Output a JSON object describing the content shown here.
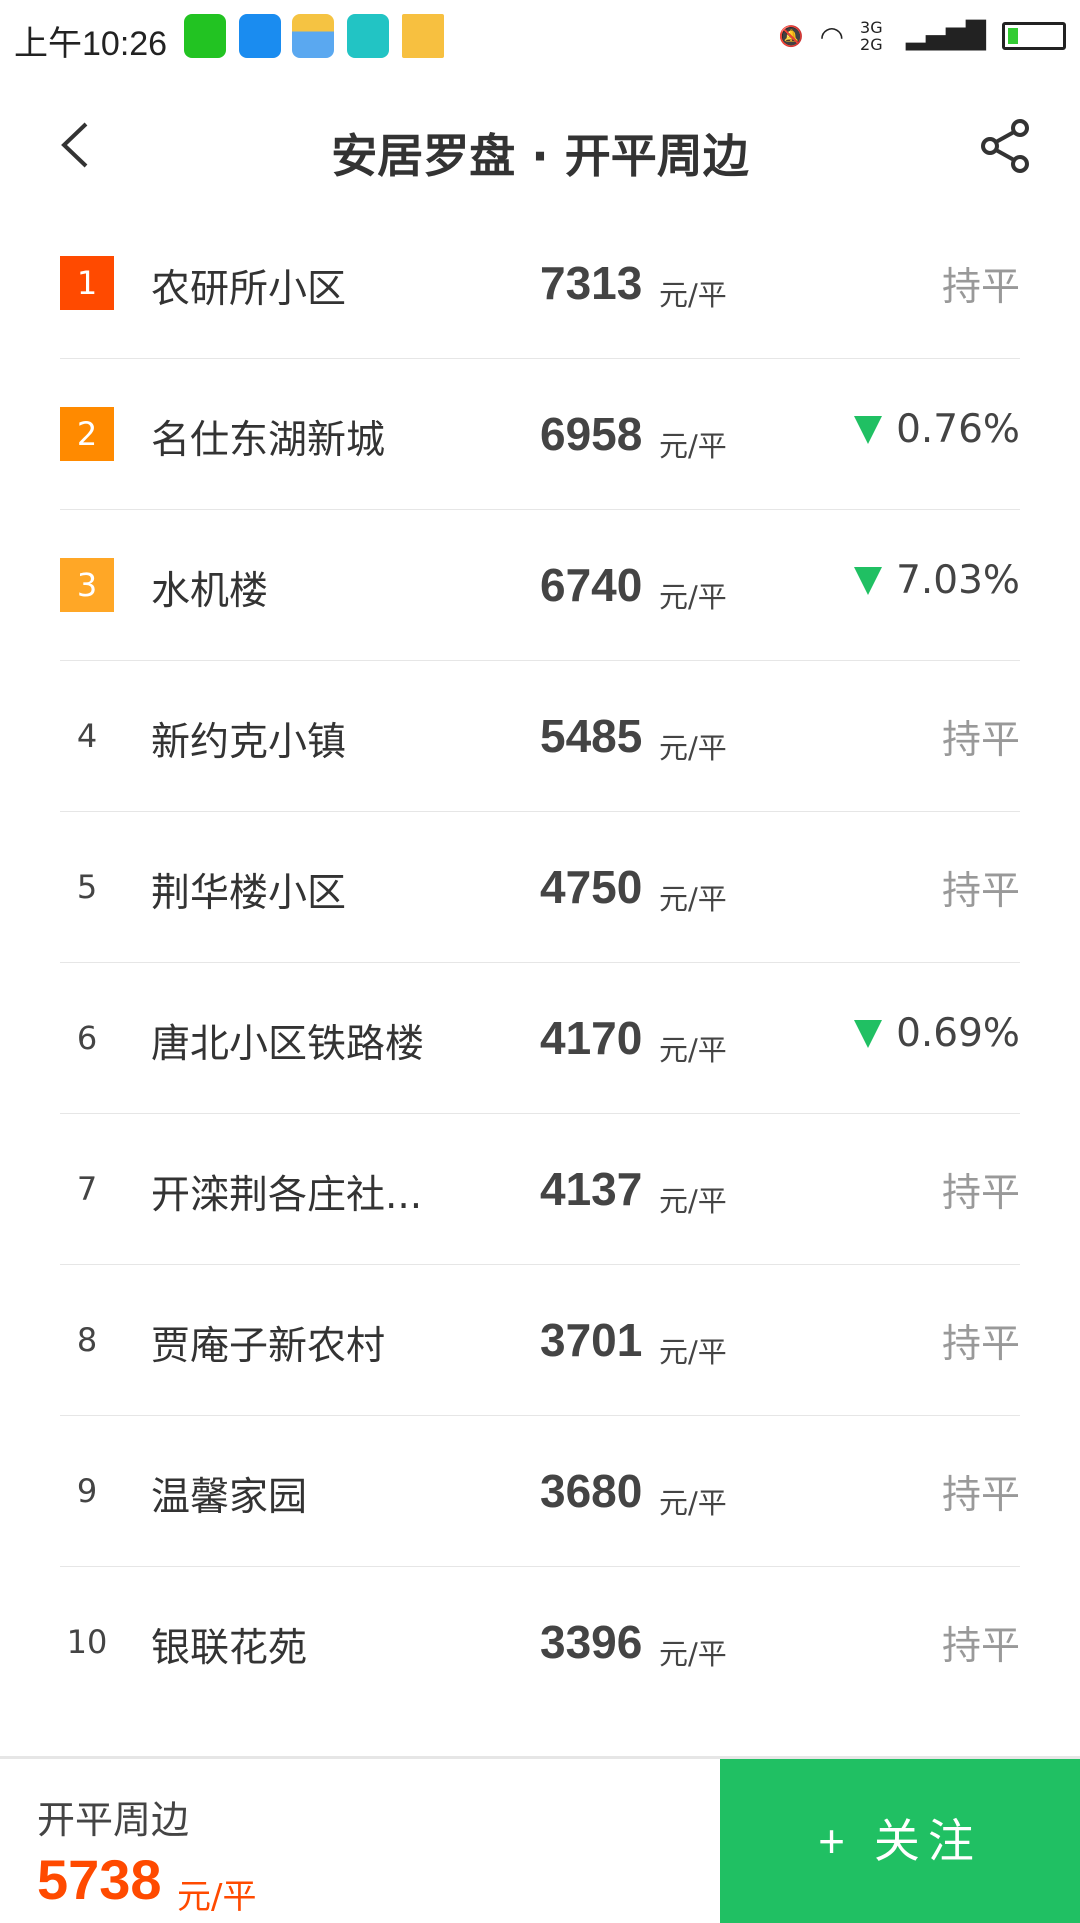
{
  "status_bar": {
    "time": "上午10:26",
    "network": "3G 2G",
    "icons": [
      "wechat-icon",
      "message-icon",
      "weather-icon",
      "scan-icon",
      "folder-icon",
      "mute-icon",
      "wifi-icon",
      "signal-icon",
      "battery-icon"
    ]
  },
  "header": {
    "title": "安居罗盘 · 开平周边"
  },
  "colors": {
    "rank1": "#ff4a00",
    "rank2": "#ff8a00",
    "rank3": "#ffa726",
    "green": "#20c063",
    "accent": "#ff4a00"
  },
  "unit": "元/平",
  "items": [
    {
      "rank": "1",
      "name": "农研所小区",
      "price": "7313",
      "trend": "持平",
      "dir": "flat"
    },
    {
      "rank": "2",
      "name": "名仕东湖新城",
      "price": "6958",
      "trend": "0.76%",
      "dir": "down"
    },
    {
      "rank": "3",
      "name": "水机楼",
      "price": "6740",
      "trend": "7.03%",
      "dir": "down"
    },
    {
      "rank": "4",
      "name": "新约克小镇",
      "price": "5485",
      "trend": "持平",
      "dir": "flat"
    },
    {
      "rank": "5",
      "name": "荆华楼小区",
      "price": "4750",
      "trend": "持平",
      "dir": "flat"
    },
    {
      "rank": "6",
      "name": "唐北小区铁路楼",
      "price": "4170",
      "trend": "0.69%",
      "dir": "down"
    },
    {
      "rank": "7",
      "name": "开滦荆各庄社...",
      "price": "4137",
      "trend": "持平",
      "dir": "flat"
    },
    {
      "rank": "8",
      "name": "贾庵子新农村",
      "price": "3701",
      "trend": "持平",
      "dir": "flat"
    },
    {
      "rank": "9",
      "name": "温馨家园",
      "price": "3680",
      "trend": "持平",
      "dir": "flat"
    },
    {
      "rank": "10",
      "name": "银联花苑",
      "price": "3396",
      "trend": "持平",
      "dir": "flat"
    }
  ],
  "bottom": {
    "name": "开平周边",
    "price": "5738",
    "unit": "元/平",
    "follow_label": "+ 关注"
  }
}
